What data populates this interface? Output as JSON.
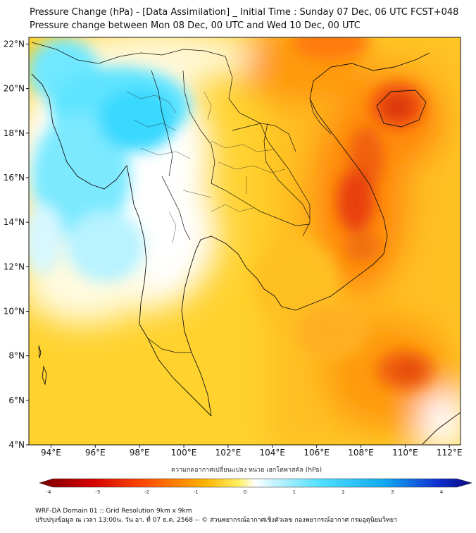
{
  "title_line1": "Pressure Change (hPa) - [Data Assimilation] _ Initial Time : Sunday 07 Dec, 06 UTC FCST+048",
  "title_line2": "Pressure change between Mon 08 Dec, 00 UTC and Wed 10 Dec, 00 UTC",
  "lat_ticks": [
    "4°N",
    "6°N",
    "8°N",
    "10°N",
    "12°N",
    "14°N",
    "16°N",
    "18°N",
    "20°N",
    "22°N"
  ],
  "lon_ticks": [
    "94°E",
    "96°E",
    "98°E",
    "100°E",
    "102°E",
    "104°E",
    "106°E",
    "108°E",
    "110°E",
    "112°E"
  ],
  "colorbar": {
    "title": "ความกดอากาศเปลี่ยนแปลง หน่วย เฮกโตพาสคัล (hPa)",
    "ticks": [
      "-4",
      "-3",
      "-2",
      "-1",
      "0",
      "1",
      "2",
      "3",
      "4"
    ],
    "min": -4,
    "max": 4
  },
  "footer_line1": "WRF-DA Domain 01 :: Grid Resolution 9km x 9km",
  "footer_line2": "ปรับปรุงข้อมูล ณ เวลา 13:00น. วัน อา. ที่ 07 ธ.ค. 2568 -- © ส่วนพยากรณ์อากาศเชิงตัวเลข กองพยากรณ์อากาศ กรมอุตุนิยมวิทยา",
  "colors": {
    "strong_fall": "#d42000",
    "fall": "#ff9a10",
    "slight_fall": "#ffd430",
    "neutral": "#ffffff",
    "rise": "#40e0ff",
    "strong_rise": "#1010c0"
  },
  "map_extent": {
    "lon_min": 93,
    "lon_max": 112.5,
    "lat_min": 4,
    "lat_max": 22.3
  }
}
